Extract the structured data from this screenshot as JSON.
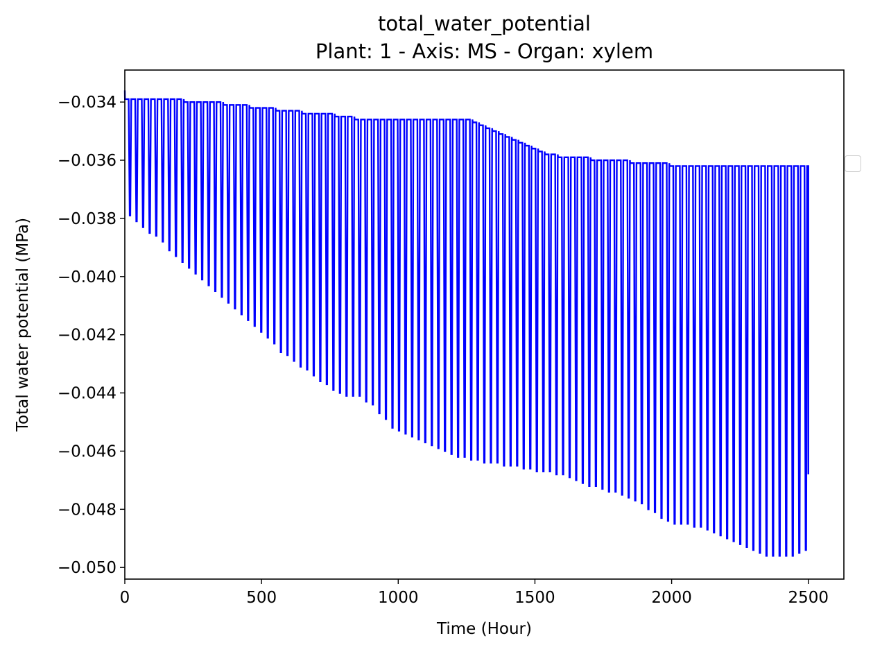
{
  "chart_data": {
    "type": "line",
    "title": "total_water_potential",
    "subtitle": "Plant: 1 - Axis: MS - Organ: xylem",
    "xlabel": "Time (Hour)",
    "ylabel": "Total water potential (MPa)",
    "xlim": [
      0,
      2630
    ],
    "ylim": [
      -0.0504,
      -0.0329
    ],
    "x_ticks": [
      0,
      500,
      1000,
      1500,
      2000,
      2500
    ],
    "x_tick_labels": [
      "0",
      "500",
      "1000",
      "1500",
      "2000",
      "2500"
    ],
    "y_ticks": [
      -0.034,
      -0.036,
      -0.038,
      -0.04,
      -0.042,
      -0.044,
      -0.046,
      -0.048,
      -0.05
    ],
    "y_tick_labels": [
      "−0.034",
      "−0.036",
      "−0.038",
      "−0.040",
      "−0.042",
      "−0.044",
      "−0.046",
      "−0.048",
      "−0.050"
    ],
    "grid": false,
    "legend": {
      "placement": "right",
      "entries": []
    },
    "series_color": "#0000ff",
    "series": [
      {
        "pattern": "daily oscillation (period 24 h), daily maxima and minima listed per cycle",
        "period_hours": 24,
        "start_x": 0,
        "end_x": 2500,
        "end_value": -0.0468,
        "start_value": -0.0336,
        "daily_max": [
          -0.0339,
          -0.0339,
          -0.0339,
          -0.0339,
          -0.0339,
          -0.0339,
          -0.0339,
          -0.0339,
          -0.0339,
          -0.034,
          -0.034,
          -0.034,
          -0.034,
          -0.034,
          -0.034,
          -0.0341,
          -0.0341,
          -0.0341,
          -0.0341,
          -0.0342,
          -0.0342,
          -0.0342,
          -0.0342,
          -0.0343,
          -0.0343,
          -0.0343,
          -0.0343,
          -0.0344,
          -0.0344,
          -0.0344,
          -0.0344,
          -0.0344,
          -0.0345,
          -0.0345,
          -0.0345,
          -0.0346,
          -0.0346,
          -0.0346,
          -0.0346,
          -0.0346,
          -0.0346,
          -0.0346,
          -0.0346,
          -0.0346,
          -0.0346,
          -0.0346,
          -0.0346,
          -0.0346,
          -0.0346,
          -0.0346,
          -0.0346,
          -0.0346,
          -0.0346,
          -0.0347,
          -0.0348,
          -0.0349,
          -0.035,
          -0.0351,
          -0.0352,
          -0.0353,
          -0.0354,
          -0.0355,
          -0.0356,
          -0.0357,
          -0.0358,
          -0.0358,
          -0.0359,
          -0.0359,
          -0.0359,
          -0.0359,
          -0.0359,
          -0.036,
          -0.036,
          -0.036,
          -0.036,
          -0.036,
          -0.036,
          -0.0361,
          -0.0361,
          -0.0361,
          -0.0361,
          -0.0361,
          -0.0361,
          -0.0362,
          -0.0362,
          -0.0362,
          -0.0362,
          -0.0362,
          -0.0362,
          -0.0362,
          -0.0362,
          -0.0362,
          -0.0362,
          -0.0362,
          -0.0362,
          -0.0362,
          -0.0362,
          -0.0362,
          -0.0362,
          -0.0362,
          -0.0362,
          -0.0362,
          -0.0362,
          -0.0362
        ],
        "daily_min": [
          -0.0379,
          -0.0381,
          -0.0383,
          -0.0385,
          -0.0386,
          -0.0388,
          -0.0391,
          -0.0393,
          -0.0395,
          -0.0397,
          -0.0399,
          -0.0401,
          -0.0403,
          -0.0405,
          -0.0407,
          -0.0409,
          -0.0411,
          -0.0413,
          -0.0415,
          -0.0417,
          -0.0419,
          -0.0421,
          -0.0423,
          -0.0426,
          -0.0427,
          -0.0429,
          -0.0431,
          -0.0432,
          -0.0434,
          -0.0436,
          -0.0437,
          -0.0439,
          -0.044,
          -0.0441,
          -0.0441,
          -0.0441,
          -0.0443,
          -0.0444,
          -0.0447,
          -0.0449,
          -0.0452,
          -0.0453,
          -0.0454,
          -0.0455,
          -0.0456,
          -0.0457,
          -0.0458,
          -0.0459,
          -0.046,
          -0.0461,
          -0.0462,
          -0.0462,
          -0.0463,
          -0.0463,
          -0.0464,
          -0.0464,
          -0.0464,
          -0.0465,
          -0.0465,
          -0.0465,
          -0.0466,
          -0.0466,
          -0.0467,
          -0.0467,
          -0.0467,
          -0.0468,
          -0.0468,
          -0.0469,
          -0.047,
          -0.0471,
          -0.0472,
          -0.0472,
          -0.0473,
          -0.0474,
          -0.0474,
          -0.0475,
          -0.0476,
          -0.0477,
          -0.0478,
          -0.048,
          -0.0481,
          -0.0483,
          -0.0484,
          -0.0485,
          -0.0485,
          -0.0485,
          -0.0486,
          -0.0486,
          -0.0487,
          -0.0488,
          -0.0489,
          -0.049,
          -0.0491,
          -0.0492,
          -0.0493,
          -0.0494,
          -0.0495,
          -0.0496,
          -0.0496,
          -0.0496,
          -0.0496,
          -0.0496,
          -0.0495,
          -0.0494,
          -0.0493
        ]
      }
    ]
  }
}
